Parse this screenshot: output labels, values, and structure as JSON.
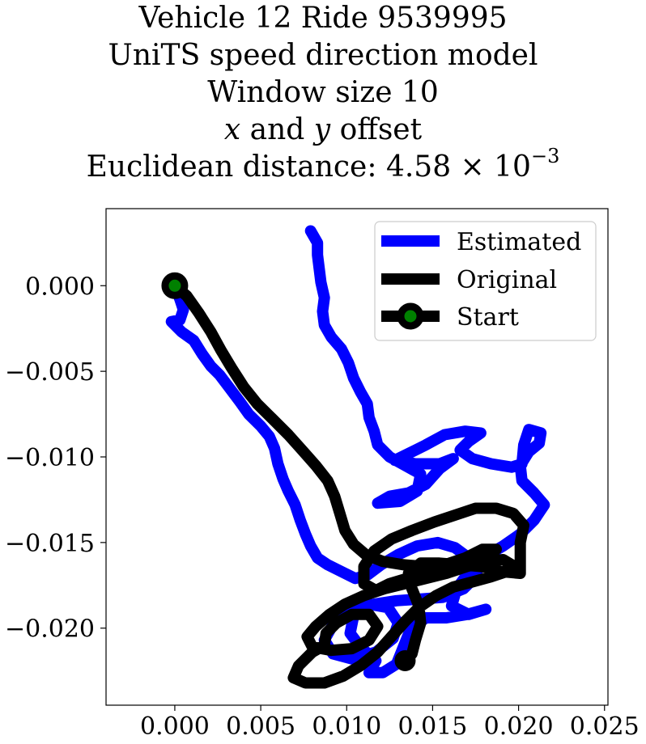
{
  "chart_data": {
    "type": "line",
    "title": {
      "line1": "Vehicle 12 Ride 9539995",
      "line2": "UniTS speed direction model",
      "line3": "Window size 10",
      "line4": {
        "var_x": "x",
        "word_and": " and ",
        "var_y": "y",
        "suffix": " offset"
      },
      "line5": {
        "prefix": "Euclidean distance: ",
        "mantissa": "4.58",
        "times": " × 10",
        "exponent": "−3"
      }
    },
    "xlabel": "",
    "ylabel": "",
    "xlim": [
      -0.004,
      0.0252
    ],
    "ylim": [
      -0.0245,
      0.0045
    ],
    "xticks": [
      0.0,
      0.005,
      0.01,
      0.015,
      0.02,
      0.025
    ],
    "xtick_labels": [
      "0.000",
      "0.005",
      "0.010",
      "0.015",
      "0.020",
      "0.025"
    ],
    "yticks": [
      0.0,
      -0.005,
      -0.01,
      -0.015,
      -0.02
    ],
    "ytick_labels": [
      "0.000",
      "−0.005",
      "−0.010",
      "−0.015",
      "−0.020"
    ],
    "grid": false,
    "legend_position": "top-right",
    "series": [
      {
        "name": "Estimated",
        "color": "#0000ff",
        "points": [
          [
            0.0,
            0.0
          ],
          [
            0.0003,
            -0.0008
          ],
          [
            0.0005,
            -0.0014
          ],
          [
            0.0003,
            -0.002
          ],
          [
            -0.0002,
            -0.0021
          ],
          [
            0.0004,
            -0.0027
          ],
          [
            0.0011,
            -0.0032
          ],
          [
            0.0016,
            -0.004
          ],
          [
            0.0021,
            -0.0047
          ],
          [
            0.0026,
            -0.0052
          ],
          [
            0.0032,
            -0.006
          ],
          [
            0.0038,
            -0.0068
          ],
          [
            0.0043,
            -0.0075
          ],
          [
            0.005,
            -0.0082
          ],
          [
            0.0055,
            -0.0088
          ],
          [
            0.0058,
            -0.0095
          ],
          [
            0.006,
            -0.0104
          ],
          [
            0.0063,
            -0.0113
          ],
          [
            0.0066,
            -0.012
          ],
          [
            0.007,
            -0.0128
          ],
          [
            0.0073,
            -0.0137
          ],
          [
            0.0076,
            -0.0145
          ],
          [
            0.0079,
            -0.0152
          ],
          [
            0.0083,
            -0.0159
          ],
          [
            0.0089,
            -0.0163
          ],
          [
            0.0097,
            -0.0167
          ],
          [
            0.0105,
            -0.0171
          ],
          [
            0.0112,
            -0.0169
          ],
          [
            0.012,
            -0.0163
          ],
          [
            0.013,
            -0.0157
          ],
          [
            0.0141,
            -0.0152
          ],
          [
            0.0153,
            -0.015
          ],
          [
            0.0163,
            -0.0153
          ],
          [
            0.0171,
            -0.0159
          ],
          [
            0.0176,
            -0.0169
          ],
          [
            0.0168,
            -0.0177
          ],
          [
            0.0156,
            -0.0182
          ],
          [
            0.0143,
            -0.0183
          ],
          [
            0.0129,
            -0.0184
          ],
          [
            0.0116,
            -0.0186
          ],
          [
            0.0102,
            -0.019
          ],
          [
            0.0092,
            -0.0198
          ],
          [
            0.0087,
            -0.0207
          ],
          [
            0.0092,
            -0.0215
          ],
          [
            0.0103,
            -0.0218
          ],
          [
            0.0117,
            -0.0214
          ],
          [
            0.0127,
            -0.0206
          ],
          [
            0.013,
            -0.0197
          ],
          [
            0.0124,
            -0.0188
          ],
          [
            0.0113,
            -0.0186
          ],
          [
            0.0104,
            -0.0193
          ],
          [
            0.0102,
            -0.0203
          ],
          [
            0.0108,
            -0.0211
          ],
          [
            0.0117,
            -0.0219
          ],
          [
            0.0113,
            -0.0226
          ],
          [
            0.0121,
            -0.0226
          ],
          [
            0.0129,
            -0.0221
          ],
          [
            0.0133,
            -0.0211
          ],
          [
            0.0137,
            -0.0201
          ],
          [
            0.0146,
            -0.0194
          ],
          [
            0.0158,
            -0.0194
          ],
          [
            0.017,
            -0.0192
          ],
          [
            0.0181,
            -0.0189
          ],
          [
            0.0171,
            -0.0192
          ],
          [
            0.0161,
            -0.0187
          ],
          [
            0.0164,
            -0.0177
          ],
          [
            0.0172,
            -0.0166
          ],
          [
            0.0181,
            -0.0158
          ],
          [
            0.0191,
            -0.0152
          ],
          [
            0.0201,
            -0.0145
          ],
          [
            0.0209,
            -0.0137
          ],
          [
            0.0215,
            -0.0128
          ],
          [
            0.0209,
            -0.0121
          ],
          [
            0.0202,
            -0.0114
          ],
          [
            0.0201,
            -0.0105
          ],
          [
            0.0206,
            -0.0097
          ],
          [
            0.0212,
            -0.0092
          ],
          [
            0.0213,
            -0.0086
          ],
          [
            0.0206,
            -0.0084
          ],
          [
            0.0203,
            -0.0093
          ],
          [
            0.0202,
            -0.0104
          ],
          [
            0.0196,
            -0.0106
          ],
          [
            0.0184,
            -0.0104
          ],
          [
            0.0173,
            -0.0101
          ],
          [
            0.0166,
            -0.0096
          ],
          [
            0.0171,
            -0.0091
          ],
          [
            0.0178,
            -0.0086
          ],
          [
            0.0169,
            -0.0085
          ],
          [
            0.0157,
            -0.0087
          ],
          [
            0.0146,
            -0.0093
          ],
          [
            0.0136,
            -0.0098
          ],
          [
            0.0128,
            -0.0102
          ],
          [
            0.014,
            -0.0104
          ],
          [
            0.0154,
            -0.0104
          ],
          [
            0.0162,
            -0.0101
          ],
          [
            0.0154,
            -0.0107
          ],
          [
            0.0146,
            -0.0116
          ],
          [
            0.0136,
            -0.0121
          ],
          [
            0.0125,
            -0.0123
          ],
          [
            0.0118,
            -0.0127
          ],
          [
            0.0131,
            -0.0126
          ],
          [
            0.0141,
            -0.012
          ],
          [
            0.0143,
            -0.011
          ],
          [
            0.0134,
            -0.0105
          ],
          [
            0.0125,
            -0.01
          ],
          [
            0.0118,
            -0.0093
          ],
          [
            0.0116,
            -0.0085
          ],
          [
            0.0113,
            -0.0077
          ],
          [
            0.0112,
            -0.0069
          ],
          [
            0.0108,
            -0.0062
          ],
          [
            0.0104,
            -0.0054
          ],
          [
            0.0101,
            -0.0045
          ],
          [
            0.0097,
            -0.0037
          ],
          [
            0.0091,
            -0.003
          ],
          [
            0.0087,
            -0.0023
          ],
          [
            0.0086,
            -0.0015
          ],
          [
            0.0087,
            -0.0007
          ],
          [
            0.0085,
            0.0002
          ],
          [
            0.0084,
            0.001
          ],
          [
            0.0083,
            0.0018
          ],
          [
            0.0083,
            0.0025
          ],
          [
            0.0079,
            0.0032
          ]
        ]
      },
      {
        "name": "Original",
        "color": "#000000",
        "points": [
          [
            0.0,
            0.0
          ],
          [
            0.0007,
            -0.0006
          ],
          [
            0.0014,
            -0.0016
          ],
          [
            0.0021,
            -0.0027
          ],
          [
            0.0027,
            -0.0038
          ],
          [
            0.0033,
            -0.0048
          ],
          [
            0.004,
            -0.0059
          ],
          [
            0.0048,
            -0.0069
          ],
          [
            0.0057,
            -0.0078
          ],
          [
            0.0066,
            -0.0087
          ],
          [
            0.0074,
            -0.0096
          ],
          [
            0.0082,
            -0.0105
          ],
          [
            0.0089,
            -0.0114
          ],
          [
            0.0093,
            -0.0123
          ],
          [
            0.0096,
            -0.0133
          ],
          [
            0.0099,
            -0.0143
          ],
          [
            0.0104,
            -0.0151
          ],
          [
            0.0111,
            -0.0157
          ],
          [
            0.0121,
            -0.0161
          ],
          [
            0.0133,
            -0.0163
          ],
          [
            0.0145,
            -0.0164
          ],
          [
            0.0157,
            -0.0163
          ],
          [
            0.0169,
            -0.0159
          ],
          [
            0.0179,
            -0.0154
          ],
          [
            0.0187,
            -0.0154
          ],
          [
            0.018,
            -0.0159
          ],
          [
            0.017,
            -0.0164
          ],
          [
            0.0158,
            -0.0168
          ],
          [
            0.0146,
            -0.0171
          ],
          [
            0.0134,
            -0.0174
          ],
          [
            0.0122,
            -0.0177
          ],
          [
            0.011,
            -0.0181
          ],
          [
            0.0099,
            -0.0186
          ],
          [
            0.009,
            -0.0192
          ],
          [
            0.0082,
            -0.0199
          ],
          [
            0.0077,
            -0.0205
          ],
          [
            0.008,
            -0.0211
          ],
          [
            0.0091,
            -0.0213
          ],
          [
            0.0103,
            -0.0212
          ],
          [
            0.0113,
            -0.0207
          ],
          [
            0.0118,
            -0.0199
          ],
          [
            0.0113,
            -0.0192
          ],
          [
            0.0103,
            -0.0192
          ],
          [
            0.0094,
            -0.0197
          ],
          [
            0.0088,
            -0.0203
          ],
          [
            0.0087,
            -0.021
          ],
          [
            0.008,
            -0.0214
          ],
          [
            0.0072,
            -0.0222
          ],
          [
            0.0069,
            -0.0229
          ],
          [
            0.0076,
            -0.0232
          ],
          [
            0.0087,
            -0.0232
          ],
          [
            0.0098,
            -0.0228
          ],
          [
            0.0108,
            -0.0222
          ],
          [
            0.0118,
            -0.0214
          ],
          [
            0.0126,
            -0.0205
          ],
          [
            0.0134,
            -0.0196
          ],
          [
            0.0142,
            -0.0188
          ],
          [
            0.0152,
            -0.0181
          ],
          [
            0.0162,
            -0.0176
          ],
          [
            0.0173,
            -0.0173
          ],
          [
            0.0184,
            -0.017
          ],
          [
            0.0193,
            -0.0167
          ],
          [
            0.0196,
            -0.0163
          ],
          [
            0.0191,
            -0.016
          ],
          [
            0.0181,
            -0.0161
          ],
          [
            0.017,
            -0.0164
          ],
          [
            0.0158,
            -0.0166
          ],
          [
            0.0146,
            -0.0168
          ],
          [
            0.0135,
            -0.0171
          ],
          [
            0.0125,
            -0.0174
          ],
          [
            0.0117,
            -0.0178
          ],
          [
            0.011,
            -0.0174
          ],
          [
            0.011,
            -0.0164
          ],
          [
            0.0116,
            -0.0155
          ],
          [
            0.0126,
            -0.0148
          ],
          [
            0.0138,
            -0.0143
          ],
          [
            0.0151,
            -0.0138
          ],
          [
            0.0163,
            -0.0134
          ],
          [
            0.0175,
            -0.013
          ],
          [
            0.0187,
            -0.013
          ],
          [
            0.0197,
            -0.0133
          ],
          [
            0.0203,
            -0.014
          ],
          [
            0.0201,
            -0.015
          ],
          [
            0.0201,
            -0.0161
          ],
          [
            0.0201,
            -0.0168
          ],
          [
            0.019,
            -0.0167
          ],
          [
            0.0178,
            -0.0164
          ],
          [
            0.0166,
            -0.0163
          ],
          [
            0.0154,
            -0.0162
          ],
          [
            0.0143,
            -0.0162
          ],
          [
            0.0136,
            -0.0168
          ],
          [
            0.0138,
            -0.0177
          ],
          [
            0.0142,
            -0.0187
          ],
          [
            0.0143,
            -0.0197
          ],
          [
            0.014,
            -0.0207
          ],
          [
            0.0138,
            -0.0215
          ],
          [
            0.0134,
            -0.0219
          ]
        ]
      }
    ],
    "start_marker": {
      "name": "Start",
      "point": [
        0.0,
        0.0
      ],
      "fill": "#008000",
      "edge": "#000000"
    }
  }
}
